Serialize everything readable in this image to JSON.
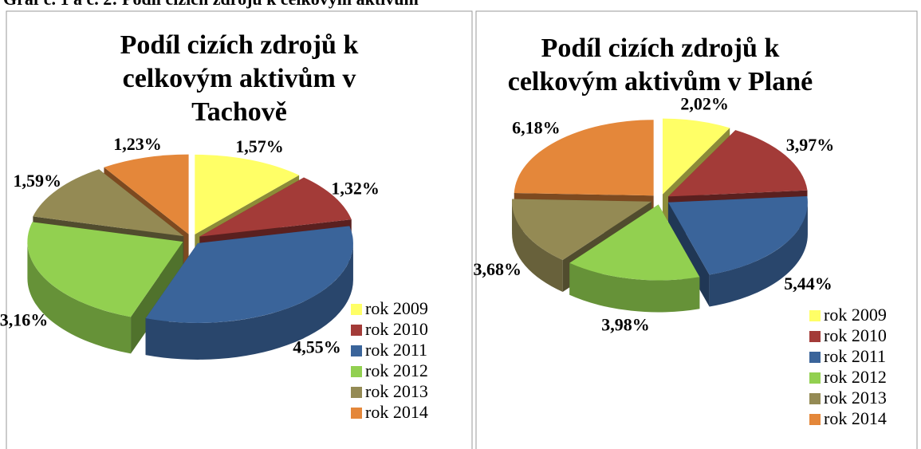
{
  "caption": "Graf č. 1 a č. 2: Podíl cizích zdrojů k celkovým aktivům",
  "chart_data": [
    {
      "type": "pie",
      "title": "Podíl cizích zdrojů k celkovým aktivům v Tachově",
      "categories": [
        "rok 2009",
        "rok 2010",
        "rok 2011",
        "rok 2012",
        "rok 2013",
        "rok 2014"
      ],
      "values": [
        1.57,
        1.32,
        4.55,
        3.16,
        1.59,
        1.23
      ],
      "value_labels": [
        "1,57%",
        "1,32%",
        "4,55%",
        "3,16%",
        "1,59%",
        "1,23%"
      ],
      "colors": [
        "#ffff66",
        "#a33b38",
        "#3a649a",
        "#92d050",
        "#948a54",
        "#e4873a"
      ]
    },
    {
      "type": "pie",
      "title": "Podíl cizích zdrojů k celkovým aktivům v Plané",
      "categories": [
        "rok 2009",
        "rok 2010",
        "rok 2011",
        "rok 2012",
        "rok 2013",
        "rok 2014"
      ],
      "values": [
        2.02,
        3.97,
        5.44,
        3.98,
        3.68,
        6.18
      ],
      "value_labels": [
        "2,02%",
        "3,97%",
        "5,44%",
        "3,98%",
        "3,68%",
        "6,18%"
      ],
      "colors": [
        "#ffff66",
        "#a33b38",
        "#3a649a",
        "#92d050",
        "#948a54",
        "#e4873a"
      ]
    }
  ]
}
